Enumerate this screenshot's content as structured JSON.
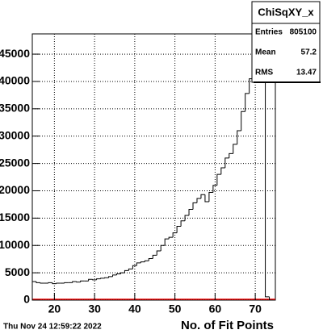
{
  "chart_data": {
    "type": "histogram",
    "bins": [
      14.5,
      15.5,
      16.5,
      17.5,
      18.5,
      19.5,
      20.5,
      21.5,
      22.5,
      23.5,
      24.5,
      25.5,
      26.5,
      27.5,
      28.5,
      29.5,
      30.5,
      31.5,
      32.5,
      33.5,
      34.5,
      35.5,
      36.5,
      37.5,
      38.5,
      39.5,
      40.5,
      41.5,
      42.5,
      43.5,
      44.5,
      45.5,
      46.5,
      47.5,
      48.5,
      49.5,
      50.5,
      51.5,
      52.5,
      53.5,
      54.5,
      55.5,
      56.5,
      57.5,
      58.5,
      59.5,
      60.5,
      61.5,
      62.5,
      63.5,
      64.5,
      65.5,
      66.5,
      67.5,
      68.5,
      69.5,
      70.5,
      71.5,
      72.5,
      73.5,
      74.5
    ],
    "counts": [
      3400,
      3200,
      3100,
      3100,
      3200,
      3000,
      3100,
      3100,
      3200,
      3200,
      3400,
      3300,
      3500,
      3500,
      3800,
      3700,
      3900,
      4000,
      4100,
      4300,
      4600,
      4800,
      5000,
      5400,
      5700,
      6300,
      6800,
      7000,
      7200,
      7600,
      8200,
      9000,
      10000,
      11200,
      11500,
      12300,
      13500,
      14500,
      15500,
      16600,
      17800,
      18600,
      19300,
      18000,
      19700,
      21000,
      23000,
      24200,
      26000,
      26800,
      28500,
      31000,
      34500,
      37800,
      40500,
      42000,
      46500,
      48000,
      600,
      0
    ],
    "color": "#000000",
    "x_label": "No. of Fit Points",
    "xlim": [
      14.5,
      75
    ],
    "ylim": [
      0,
      48700
    ],
    "xticks": [
      20,
      30,
      40,
      50,
      60,
      70
    ],
    "yticks": [
      0,
      5000,
      10000,
      15000,
      20000,
      25000,
      30000,
      35000,
      40000,
      45000
    ],
    "grid": true,
    "stats": {
      "title": "ChiSqXY_x",
      "rows": [
        [
          "Entries",
          "805100"
        ],
        [
          "Mean",
          "57.2"
        ],
        [
          "RMS",
          "13.47"
        ]
      ]
    },
    "date": "Thu Nov 24 12:59:22 2022"
  }
}
